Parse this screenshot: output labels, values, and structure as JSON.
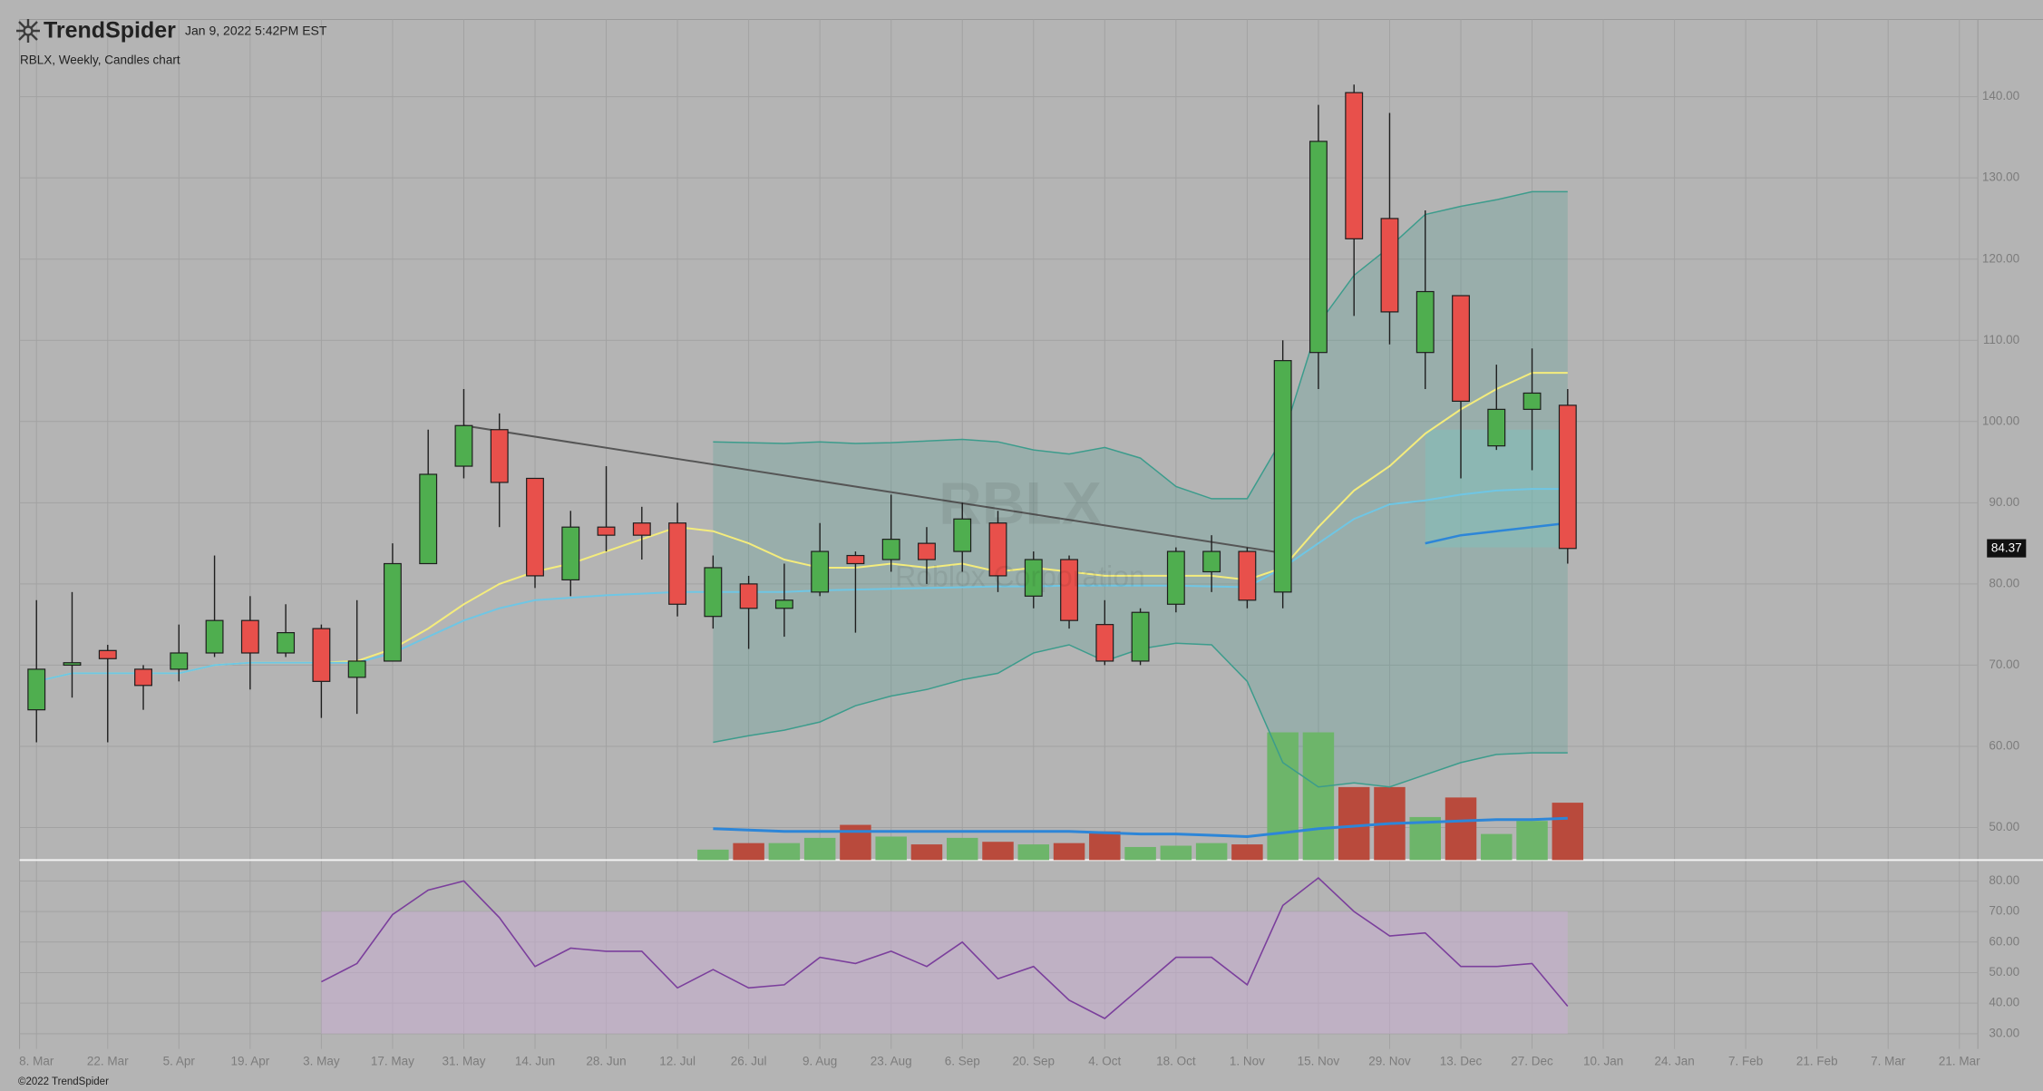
{
  "header": {
    "brand": "TrendSpider",
    "timestamp": "Jan 9, 2022 5:42PM EST",
    "chart_label": "RBLX, Weekly, Candles chart"
  },
  "watermark": {
    "symbol": "RBLX",
    "name": "Roblox Corporation"
  },
  "footer": "©2022 TrendSpider",
  "chart_data": [
    {
      "type": "candlestick",
      "categories": [
        "8. Mar",
        null,
        "22. Mar",
        null,
        "5. Apr",
        null,
        "19. Apr",
        null,
        "3. May",
        null,
        "17. May",
        null,
        "31. May",
        null,
        "14. Jun",
        null,
        "28. Jun",
        null,
        "12. Jul",
        null,
        "26. Jul",
        null,
        "9. Aug",
        null,
        "23. Aug",
        null,
        "6. Sep",
        null,
        "20. Sep",
        null,
        "4. Oct",
        null,
        "18. Oct",
        null,
        "1. Nov",
        null,
        "15. Nov",
        null,
        "29. Nov",
        null,
        "13. Dec",
        null,
        "27. Dec",
        null,
        "10. Jan",
        null,
        "24. Jan",
        null,
        "7. Feb",
        null,
        "21. Feb",
        null,
        "7. Mar",
        null,
        "21. Mar"
      ],
      "open": [
        64.5,
        70,
        71.8,
        69.5,
        69.5,
        71.5,
        75.5,
        71.5,
        74.5,
        68.5,
        70.5,
        82.5,
        94.5,
        99,
        93,
        80.5,
        87,
        87.5,
        87.5,
        76,
        80,
        77,
        79,
        83.5,
        83,
        85,
        84,
        87.5,
        78.5,
        83,
        75,
        70.5,
        77.5,
        81.5,
        84,
        79,
        108.5,
        140.5,
        125,
        108.5,
        115.5,
        97,
        101.5,
        102,
        null,
        null,
        null,
        null,
        null,
        null,
        null,
        null,
        null,
        null,
        null
      ],
      "high": [
        78,
        79,
        72.5,
        70,
        75,
        83.5,
        78.5,
        77.5,
        75,
        78,
        85,
        99,
        104,
        101,
        93,
        89,
        94.5,
        89.5,
        90,
        83.5,
        81,
        82.5,
        87.5,
        84,
        91,
        87,
        90,
        89,
        84,
        83.5,
        78,
        77,
        84.5,
        86,
        84.5,
        110,
        139,
        141.5,
        138,
        126,
        115.5,
        107,
        109,
        104,
        null,
        null,
        null,
        null,
        null,
        null,
        null,
        null,
        null,
        null,
        null
      ],
      "low": [
        60.5,
        66,
        60.5,
        64.5,
        68,
        71,
        67,
        71,
        63.5,
        64,
        70.5,
        82.5,
        93,
        87,
        79.5,
        78.5,
        84,
        83,
        76,
        74.5,
        72,
        73.5,
        78.5,
        74,
        81.5,
        80,
        81.5,
        79,
        77,
        74.5,
        70,
        70,
        76.5,
        79,
        77,
        77,
        104,
        113,
        109.5,
        104,
        93,
        96.5,
        94,
        82.5,
        null,
        null,
        null,
        null,
        null,
        null,
        null,
        null,
        null,
        null,
        null
      ],
      "close": [
        69.5,
        70.3,
        70.8,
        67.5,
        71.5,
        75.5,
        71.5,
        74,
        68,
        70.5,
        82.5,
        93.5,
        99.5,
        92.5,
        81,
        87,
        86,
        86,
        77.5,
        82,
        77,
        78,
        84,
        82.5,
        85.5,
        83,
        88,
        81,
        83,
        75.5,
        70.5,
        76.5,
        84,
        84,
        78,
        107.5,
        134.5,
        122.5,
        113.5,
        116,
        102.5,
        101.5,
        103.5,
        84.37,
        null,
        null,
        null,
        null,
        null,
        null,
        null,
        null,
        null,
        null,
        null
      ],
      "up_color": "#4fae4f",
      "down_color": "#e8504b",
      "outline_color": "#1e1e1e",
      "price_tag": "84.37",
      "series": [
        {
          "kind": "band_upper",
          "color": "#3c9c8c",
          "values": [
            null,
            null,
            null,
            null,
            null,
            null,
            null,
            null,
            null,
            null,
            null,
            null,
            null,
            null,
            null,
            null,
            null,
            null,
            null,
            97.5,
            97.4,
            97.3,
            97.5,
            97.3,
            97.4,
            97.6,
            97.8,
            97.5,
            96.5,
            96,
            96.8,
            95.5,
            92,
            90.5,
            90.5,
            98,
            112,
            118,
            121.5,
            125.5,
            126.5,
            127.3,
            128.3,
            128.3,
            null,
            null,
            null,
            null,
            null,
            null,
            null,
            null,
            null,
            null,
            null
          ]
        },
        {
          "kind": "band_lower",
          "color": "#3c9c8c",
          "values": [
            null,
            null,
            null,
            null,
            null,
            null,
            null,
            null,
            null,
            null,
            null,
            null,
            null,
            null,
            null,
            null,
            null,
            null,
            null,
            60.5,
            61.3,
            62,
            63,
            65,
            66.2,
            67,
            68.2,
            69,
            71.5,
            72.5,
            70.5,
            72,
            72.7,
            72.5,
            68,
            58,
            55,
            55.5,
            55,
            56.5,
            58,
            59,
            59.2,
            59.2,
            null,
            null,
            null,
            null,
            null,
            null,
            null,
            null,
            null,
            null,
            null
          ]
        },
        {
          "kind": "line",
          "color": "#f4ec7c",
          "values": [
            68,
            69,
            69,
            69,
            69,
            70,
            70.3,
            70.3,
            70.3,
            70.5,
            72,
            74.5,
            77.5,
            80,
            81.5,
            82.5,
            84,
            85.5,
            87,
            86.5,
            85,
            83,
            82,
            82,
            82.5,
            82,
            82.5,
            81.5,
            82,
            81.5,
            81,
            81,
            81,
            81,
            80.5,
            82,
            87,
            91.5,
            94.5,
            98.5,
            101.5,
            104,
            106,
            106,
            null,
            null,
            null,
            null,
            null,
            null,
            null,
            null,
            null,
            null,
            null
          ]
        },
        {
          "kind": "line",
          "color": "#6fc6e4",
          "values": [
            68,
            69,
            69,
            69,
            69,
            70,
            70.3,
            70.3,
            70.3,
            70.3,
            71.5,
            73.5,
            75.5,
            77,
            78,
            78.3,
            78.6,
            78.8,
            79,
            79,
            79,
            79,
            79.2,
            79.3,
            79.4,
            79.5,
            79.6,
            79.7,
            79.7,
            79.8,
            79.8,
            79.8,
            79.8,
            79.7,
            79.6,
            82,
            85,
            88,
            89.8,
            90.3,
            91,
            91.5,
            91.7,
            91.7,
            null,
            null,
            null,
            null,
            null,
            null,
            null,
            null,
            null,
            null,
            null
          ]
        },
        {
          "kind": "zone_line",
          "color": "#2d86d8",
          "zone_ylim": [
            84.5,
            99
          ],
          "zone_color": "#7cc4bc",
          "values": [
            null,
            null,
            null,
            null,
            null,
            null,
            null,
            null,
            null,
            null,
            null,
            null,
            null,
            null,
            null,
            null,
            null,
            null,
            null,
            null,
            null,
            null,
            null,
            null,
            null,
            null,
            null,
            null,
            null,
            null,
            null,
            null,
            null,
            null,
            null,
            null,
            null,
            null,
            null,
            85,
            86,
            86.5,
            87,
            87.5,
            null,
            null,
            null,
            null,
            null,
            null,
            null,
            null,
            null,
            null,
            null
          ]
        },
        {
          "kind": "trendline",
          "color": "#555555",
          "values": [
            null,
            null,
            null,
            null,
            null,
            null,
            null,
            null,
            null,
            null,
            null,
            null,
            99.5,
            null,
            null,
            null,
            null,
            null,
            null,
            null,
            null,
            null,
            null,
            null,
            null,
            null,
            null,
            null,
            null,
            null,
            null,
            null,
            null,
            null,
            null,
            83.8,
            null,
            null,
            null,
            null,
            null,
            null,
            null,
            null,
            null,
            null,
            null,
            null,
            null,
            null,
            null,
            null,
            null,
            null,
            null
          ]
        }
      ],
      "volume": {
        "up_color": "#6db56a",
        "down_color": "#b94a3c",
        "values": [
          null,
          null,
          null,
          null,
          null,
          null,
          null,
          null,
          null,
          null,
          null,
          null,
          null,
          null,
          null,
          null,
          null,
          null,
          null,
          8,
          13,
          13,
          17,
          27,
          18,
          12,
          17,
          14,
          12,
          13,
          22,
          10,
          11,
          13,
          12,
          98,
          98,
          56,
          56,
          33,
          48,
          20,
          30,
          44,
          null,
          null,
          null,
          null,
          null,
          null,
          null,
          null,
          null,
          null,
          null
        ],
        "average": {
          "color": "#2d86d8",
          "values": [
            null,
            null,
            null,
            null,
            null,
            null,
            null,
            null,
            null,
            null,
            null,
            null,
            null,
            null,
            null,
            null,
            null,
            null,
            null,
            24,
            23,
            22,
            22,
            22,
            22,
            22,
            22,
            22,
            22,
            22,
            21,
            20,
            20,
            19,
            18,
            21,
            24,
            26,
            28,
            29,
            30,
            31,
            31,
            32,
            null,
            null,
            null,
            null,
            null,
            null,
            null,
            null,
            null,
            null,
            null
          ]
        }
      },
      "ylim": [
        46,
        149.5
      ],
      "yticks": [
        {
          "value": 50,
          "label": "50.00"
        },
        {
          "value": 60,
          "label": "60.00"
        },
        {
          "value": 70,
          "label": "70.00"
        },
        {
          "value": 80,
          "label": "80.00"
        },
        {
          "value": 90,
          "label": "90.00"
        },
        {
          "value": 100,
          "label": "100.00"
        },
        {
          "value": 110,
          "label": "110.00"
        },
        {
          "value": 120,
          "label": "120.00"
        },
        {
          "value": 130,
          "label": "130.00"
        },
        {
          "value": 140,
          "label": "140.00"
        }
      ],
      "grid": true
    },
    {
      "type": "line",
      "color": "#7b3f9c",
      "band": [
        30,
        70
      ],
      "band_color": "#c9aed2",
      "values": [
        null,
        null,
        null,
        null,
        null,
        null,
        null,
        null,
        47,
        53,
        69,
        77,
        80,
        68,
        52,
        58,
        57,
        57,
        45,
        51,
        45,
        46,
        55,
        53,
        57,
        52,
        60,
        48,
        52,
        41,
        35,
        45,
        55,
        55,
        46,
        72,
        81,
        70,
        62,
        63,
        52,
        52,
        53,
        39,
        null,
        null,
        null,
        null,
        null,
        null,
        null,
        null,
        null,
        null,
        null
      ],
      "ylim": [
        25,
        86
      ],
      "yticks": [
        {
          "value": 30,
          "label": "30.00"
        },
        {
          "value": 40,
          "label": "40.00"
        },
        {
          "value": 50,
          "label": "50.00"
        },
        {
          "value": 60,
          "label": "60.00"
        },
        {
          "value": 70,
          "label": "70.00"
        },
        {
          "value": 80,
          "label": "80.00"
        }
      ],
      "grid": true
    }
  ]
}
